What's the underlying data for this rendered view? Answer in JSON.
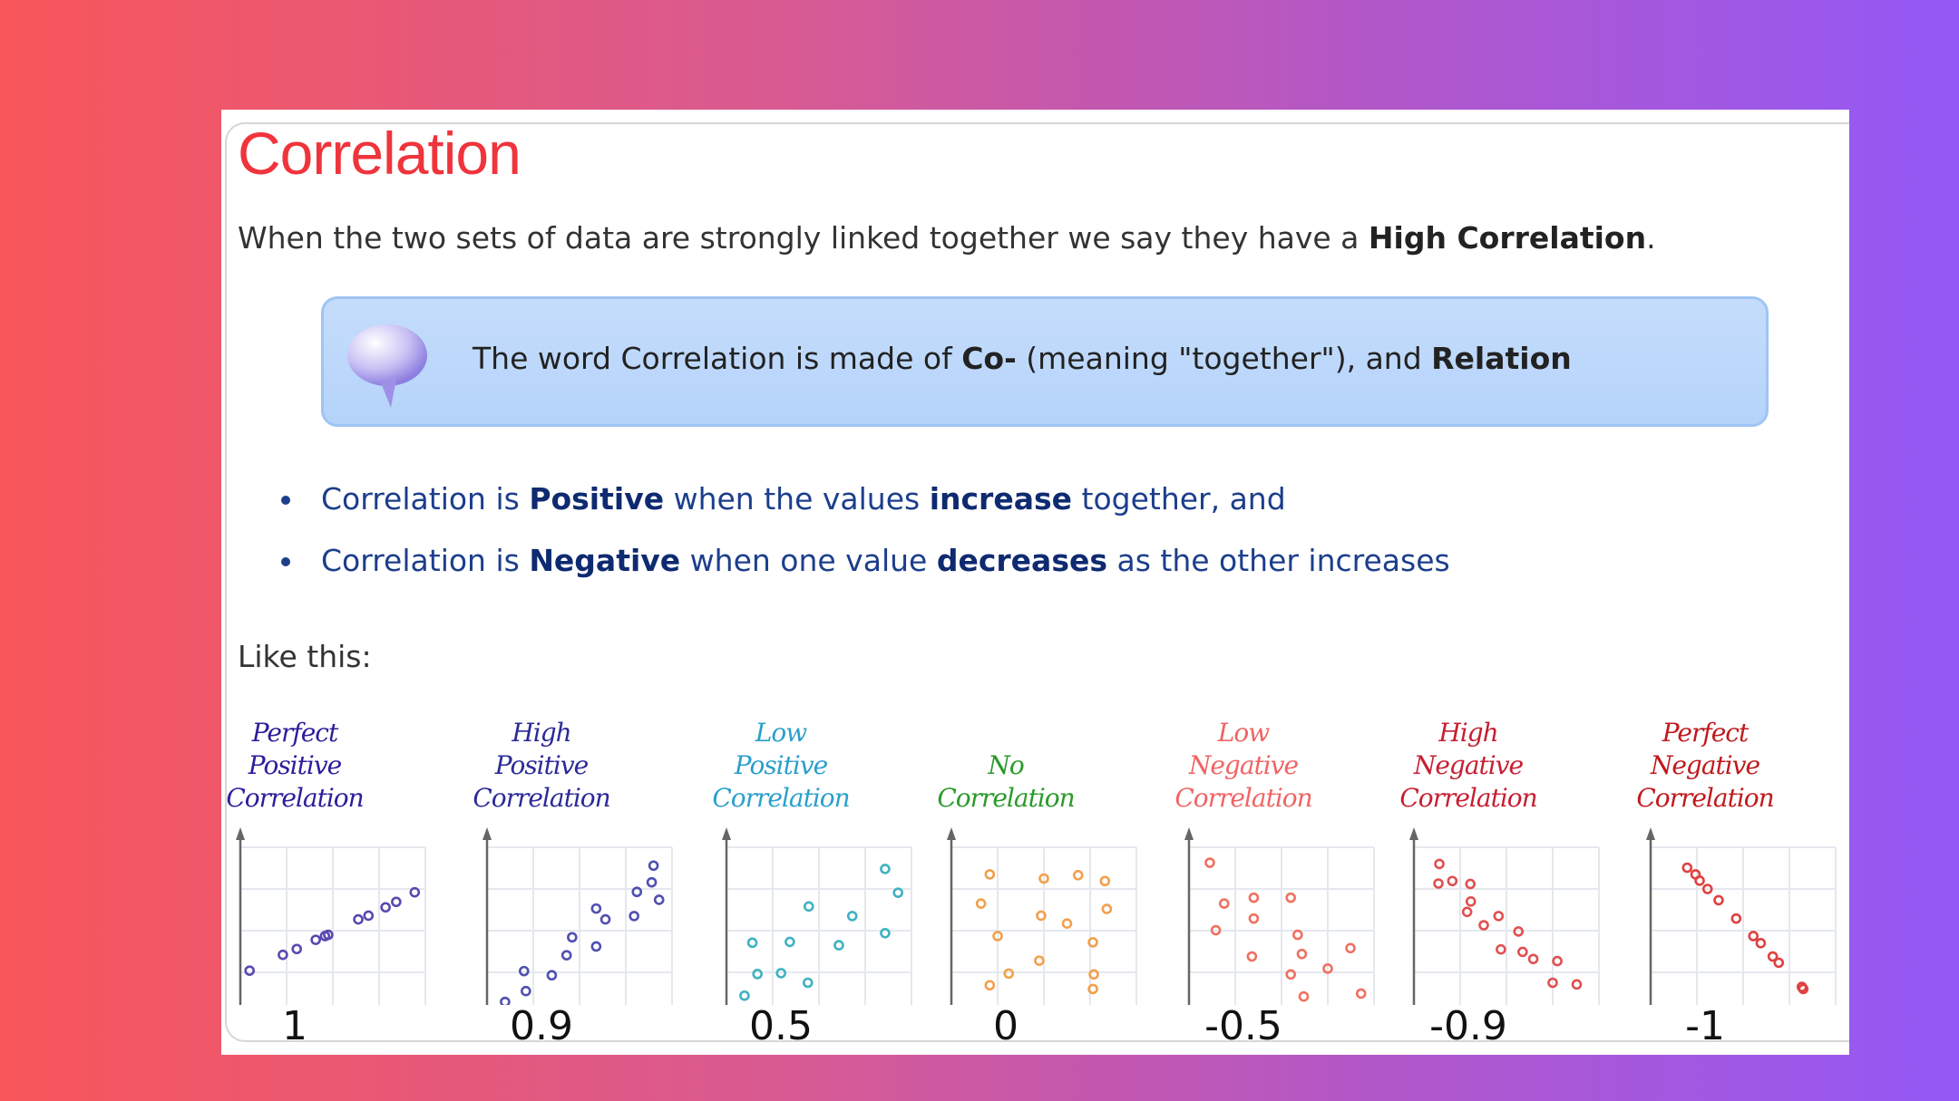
{
  "title": "Correlation",
  "intro": {
    "text": "When the two sets of data are strongly linked together we say they have a ",
    "bold": "High Correlation",
    "end": "."
  },
  "note": {
    "icon": "speech-bubble-icon",
    "t1": "The word Correlation is made of ",
    "b1": "Co-",
    "t2": " (meaning \"together\"), and ",
    "b2": "Relation"
  },
  "bullets": [
    {
      "t1": "Correlation is ",
      "b1": "Positive",
      "t2": " when the values ",
      "b2": "increase",
      "t3": " together, and"
    },
    {
      "t1": "Correlation is ",
      "b1": "Negative",
      "t2": " when one value ",
      "b2": "decreases",
      "t3": " as the other increases"
    }
  ],
  "like": "Like this:",
  "colors": {
    "title": "#f0343c",
    "text_blue": "#1c3e8c",
    "note_bg": "#bcd7fb"
  },
  "chart_data": [
    {
      "type": "scatter",
      "title": [
        "Perfect",
        "Positive",
        "Correlation"
      ],
      "label": "1",
      "title_color": "#2b1e9c",
      "dot_color": "#5a48b0",
      "xlim": [
        0,
        4
      ],
      "ylim": [
        0,
        4
      ],
      "grid": true,
      "points": [
        [
          0.2,
          1.04
        ],
        [
          0.92,
          1.42
        ],
        [
          1.22,
          1.56
        ],
        [
          1.63,
          1.78
        ],
        [
          1.83,
          1.87
        ],
        [
          1.9,
          1.9
        ],
        [
          2.55,
          2.27
        ],
        [
          2.77,
          2.36
        ],
        [
          3.14,
          2.56
        ],
        [
          3.37,
          2.69
        ],
        [
          3.77,
          2.92
        ]
      ]
    },
    {
      "type": "scatter",
      "title": [
        "High",
        "Positive",
        "Correlation"
      ],
      "label": "0.9",
      "title_color": "#2b2a98",
      "dot_color": "#5050b0",
      "xlim": [
        0,
        4
      ],
      "ylim": [
        0,
        4
      ],
      "grid": true,
      "points": [
        [
          0.39,
          0.29
        ],
        [
          0.84,
          0.55
        ],
        [
          0.8,
          1.03
        ],
        [
          1.4,
          0.93
        ],
        [
          1.72,
          1.41
        ],
        [
          1.84,
          1.84
        ],
        [
          2.36,
          1.62
        ],
        [
          2.36,
          2.53
        ],
        [
          2.56,
          2.27
        ],
        [
          3.18,
          2.35
        ],
        [
          3.24,
          2.93
        ],
        [
          3.56,
          3.16
        ],
        [
          3.6,
          3.56
        ],
        [
          3.72,
          2.74
        ]
      ]
    },
    {
      "type": "scatter",
      "title": [
        "Low",
        "Positive",
        "Correlation"
      ],
      "label": "0.5",
      "title_color": "#2aa0cc",
      "dot_color": "#3fb2c2",
      "xlim": [
        0,
        4
      ],
      "ylim": [
        0,
        4
      ],
      "grid": true,
      "points": [
        [
          0.39,
          0.44
        ],
        [
          0.67,
          0.96
        ],
        [
          0.56,
          1.71
        ],
        [
          1.18,
          0.98
        ],
        [
          1.37,
          1.73
        ],
        [
          1.76,
          0.75
        ],
        [
          1.78,
          2.58
        ],
        [
          2.43,
          1.65
        ],
        [
          2.72,
          2.35
        ],
        [
          3.43,
          1.94
        ],
        [
          3.43,
          3.48
        ],
        [
          3.71,
          2.91
        ]
      ]
    },
    {
      "type": "scatter",
      "title": [
        "No",
        "Correlation"
      ],
      "label": "0",
      "title_color": "#2a9a2a",
      "dot_color": "#f2a04c",
      "xlim": [
        0,
        4
      ],
      "ylim": [
        0,
        4
      ],
      "grid": true,
      "points": [
        [
          0.83,
          3.35
        ],
        [
          2.0,
          3.25
        ],
        [
          2.74,
          3.33
        ],
        [
          3.32,
          3.19
        ],
        [
          0.64,
          2.65
        ],
        [
          3.36,
          2.52
        ],
        [
          1.94,
          2.36
        ],
        [
          2.5,
          2.17
        ],
        [
          1.0,
          1.87
        ],
        [
          3.06,
          1.72
        ],
        [
          1.9,
          1.28
        ],
        [
          1.24,
          0.97
        ],
        [
          3.08,
          0.95
        ],
        [
          0.83,
          0.69
        ],
        [
          3.06,
          0.6
        ]
      ]
    },
    {
      "type": "scatter",
      "title": [
        "Low",
        "Negative",
        "Correlation"
      ],
      "label": "-0.5",
      "title_color": "#f06464",
      "dot_color": "#f07060",
      "xlim": [
        0,
        4
      ],
      "ylim": [
        0,
        4
      ],
      "grid": true,
      "points": [
        [
          0.45,
          3.63
        ],
        [
          1.4,
          2.79
        ],
        [
          2.2,
          2.79
        ],
        [
          0.76,
          2.65
        ],
        [
          1.4,
          2.29
        ],
        [
          0.58,
          2.01
        ],
        [
          2.35,
          1.9
        ],
        [
          3.49,
          1.58
        ],
        [
          2.44,
          1.44
        ],
        [
          1.36,
          1.38
        ],
        [
          3.0,
          1.09
        ],
        [
          2.2,
          0.95
        ],
        [
          2.48,
          0.42
        ],
        [
          3.72,
          0.49
        ]
      ]
    },
    {
      "type": "scatter",
      "title": [
        "High",
        "Negative",
        "Correlation"
      ],
      "label": "-0.9",
      "title_color": "#c81e32",
      "dot_color": "#e05050",
      "xlim": [
        0,
        4
      ],
      "ylim": [
        0,
        4
      ],
      "grid": true,
      "points": [
        [
          0.55,
          3.6
        ],
        [
          0.53,
          3.13
        ],
        [
          0.83,
          3.19
        ],
        [
          1.22,
          3.12
        ],
        [
          1.23,
          2.7
        ],
        [
          1.15,
          2.45
        ],
        [
          1.83,
          2.35
        ],
        [
          1.51,
          2.13
        ],
        [
          2.26,
          1.98
        ],
        [
          1.88,
          1.55
        ],
        [
          2.35,
          1.49
        ],
        [
          2.58,
          1.32
        ],
        [
          3.1,
          1.27
        ],
        [
          3.0,
          0.75
        ],
        [
          3.52,
          0.71
        ]
      ]
    },
    {
      "type": "scatter",
      "title": [
        "Perfect",
        "Negative",
        "Correlation"
      ],
      "label": "-1",
      "title_color": "#c01a1e",
      "dot_color": "#e04040",
      "xlim": [
        0,
        4
      ],
      "ylim": [
        0,
        4
      ],
      "grid": true,
      "points": [
        [
          0.79,
          3.51
        ],
        [
          0.97,
          3.35
        ],
        [
          1.06,
          3.2
        ],
        [
          1.23,
          3.0
        ],
        [
          1.47,
          2.73
        ],
        [
          1.85,
          2.29
        ],
        [
          2.22,
          1.87
        ],
        [
          2.38,
          1.7
        ],
        [
          2.64,
          1.38
        ],
        [
          2.77,
          1.23
        ],
        [
          3.27,
          0.65
        ],
        [
          3.3,
          0.6
        ]
      ]
    }
  ]
}
